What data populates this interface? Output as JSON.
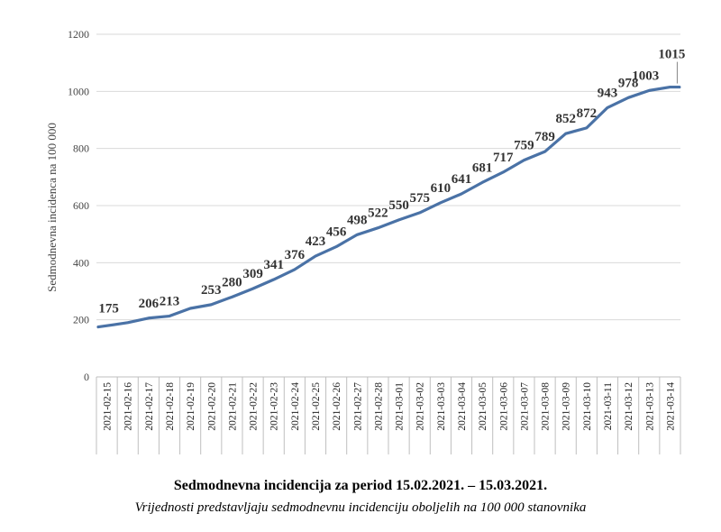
{
  "chart_data": {
    "type": "line",
    "ylabel": "Sedmodnevna incidenca na 100 000",
    "xlabel": "",
    "ylim": [
      0,
      1200
    ],
    "yticks": [
      0,
      200,
      400,
      600,
      800,
      1000,
      1200
    ],
    "grid": true,
    "line_color": "#4a72a6",
    "x": [
      "2021-02-15",
      "2021-02-16",
      "2021-02-17",
      "2021-02-18",
      "2021-02-19",
      "2021-02-20",
      "2021-02-21",
      "2021-02-22",
      "2021-02-23",
      "2021-02-24",
      "2021-02-25",
      "2021-02-26",
      "2021-02-27",
      "2021-02-28",
      "2021-03-01",
      "2021-03-02",
      "2021-03-03",
      "2021-03-04",
      "2021-03-05",
      "2021-03-06",
      "2021-03-07",
      "2021-03-08",
      "2021-03-09",
      "2021-03-10",
      "2021-03-11",
      "2021-03-12",
      "2021-03-13",
      "2021-03-14"
    ],
    "series": [
      {
        "values": [
          175,
          190,
          206,
          213,
          240,
          253,
          280,
          309,
          341,
          376,
          423,
          456,
          498,
          522,
          550,
          575,
          610,
          641,
          681,
          717,
          759,
          789,
          852,
          872,
          943,
          978,
          1003,
          1015
        ],
        "labels": [
          "175",
          "",
          "206",
          "213",
          "",
          "253",
          "280",
          "309",
          "341",
          "376",
          "423",
          "456",
          "498",
          "522",
          "550",
          "575",
          "610",
          "641",
          "681",
          "717",
          "759",
          "789",
          "852",
          "872",
          "943",
          "978",
          "1003",
          "1015"
        ]
      }
    ],
    "end_value": 1015
  },
  "caption": {
    "title": "Sedmodnevna incidencija za period 15.02.2021. – 15.03.2021.",
    "subtitle": "Vrijednosti predstavljaju sedmodnevnu incidenciju oboljelih na 100 000 stanovnika"
  }
}
